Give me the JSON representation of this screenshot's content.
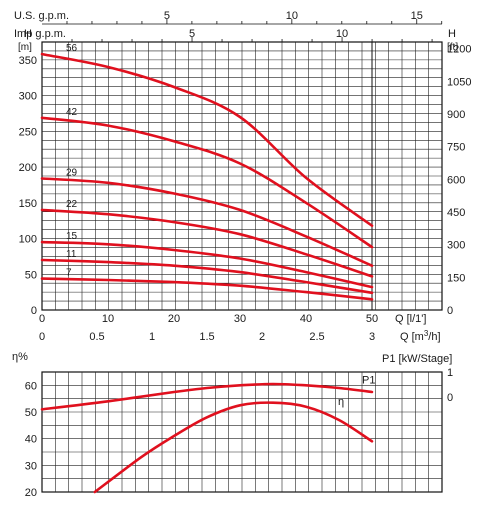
{
  "chart_data": [
    {
      "type": "line",
      "title": "",
      "top_axes": [
        {
          "label": "U.S. g.p.m.",
          "ticks": [
            "5",
            "10",
            "15"
          ],
          "values": [
            5,
            10,
            15
          ],
          "per_m3h": 4.403
        },
        {
          "label": "Imp g.p.m.",
          "ticks": [
            "5",
            "10"
          ],
          "values": [
            5,
            10
          ],
          "per_m3h": 3.666
        }
      ],
      "left_axis": {
        "unit_label": "H",
        "unit": "[m]",
        "ticks": [
          "0",
          "50",
          "100",
          "150",
          "200",
          "250",
          "300",
          "350"
        ],
        "ylim": [
          0,
          375
        ]
      },
      "right_axis": {
        "unit_label": "H",
        "unit": "[ft]",
        "ticks": [
          "0",
          "150",
          "300",
          "450",
          "600",
          "750",
          "900",
          "1050",
          "1200"
        ]
      },
      "x_axis_ls": {
        "unit": "Q [l/1']",
        "ticks": [
          "0",
          "10",
          "20",
          "30",
          "40",
          "50"
        ],
        "xlim": [
          0,
          50
        ]
      },
      "x_axis_m3h": {
        "unit": "Q [m³/h]",
        "ticks": [
          "0",
          "0.5",
          "1",
          "1.5",
          "2",
          "2.5",
          "3"
        ]
      },
      "grid": true,
      "series": [
        {
          "name": "56",
          "x": [
            0,
            10,
            20,
            30,
            40,
            50
          ],
          "y": [
            358,
            340,
            312,
            270,
            185,
            118
          ]
        },
        {
          "name": "42",
          "x": [
            0,
            10,
            20,
            30,
            40,
            50
          ],
          "y": [
            269,
            258,
            236,
            205,
            150,
            88
          ]
        },
        {
          "name": "29",
          "x": [
            0,
            10,
            20,
            30,
            40,
            50
          ],
          "y": [
            184,
            178,
            163,
            140,
            103,
            62
          ]
        },
        {
          "name": "22",
          "x": [
            0,
            10,
            20,
            30,
            40,
            50
          ],
          "y": [
            140,
            134,
            123,
            106,
            78,
            47
          ]
        },
        {
          "name": "15",
          "x": [
            0,
            10,
            20,
            30,
            40,
            50
          ],
          "y": [
            95,
            92,
            84,
            72,
            53,
            32
          ]
        },
        {
          "name": "11",
          "x": [
            0,
            10,
            20,
            30,
            40,
            50
          ],
          "y": [
            70,
            67,
            62,
            53,
            39,
            24
          ]
        },
        {
          "name": "7",
          "x": [
            0,
            10,
            20,
            30,
            40,
            50
          ],
          "y": [
            44,
            42,
            39,
            34,
            25,
            15
          ]
        }
      ],
      "line_color": "#e0101e"
    },
    {
      "type": "line",
      "title": "",
      "left_axis": {
        "label": "η%",
        "ticks": [
          "20",
          "30",
          "40",
          "50",
          "60"
        ],
        "ylim": [
          20,
          65
        ]
      },
      "right_axis": {
        "label": "P1 [kW/Stage]",
        "ticks": [
          "1",
          "0"
        ]
      },
      "xlim": [
        0,
        50
      ],
      "grid": true,
      "series": [
        {
          "name": "P1",
          "x": [
            0,
            10,
            20,
            25,
            30,
            35,
            40,
            45,
            50
          ],
          "y": [
            51,
            54,
            57.5,
            59,
            60,
            60.5,
            60,
            59,
            57.5
          ]
        },
        {
          "name": "η",
          "x": [
            8,
            15,
            20,
            25,
            30,
            35,
            40,
            45,
            50
          ],
          "y": [
            20,
            33,
            41,
            48,
            52.5,
            53.5,
            52,
            47,
            39
          ]
        }
      ],
      "line_color": "#e0101e"
    }
  ]
}
